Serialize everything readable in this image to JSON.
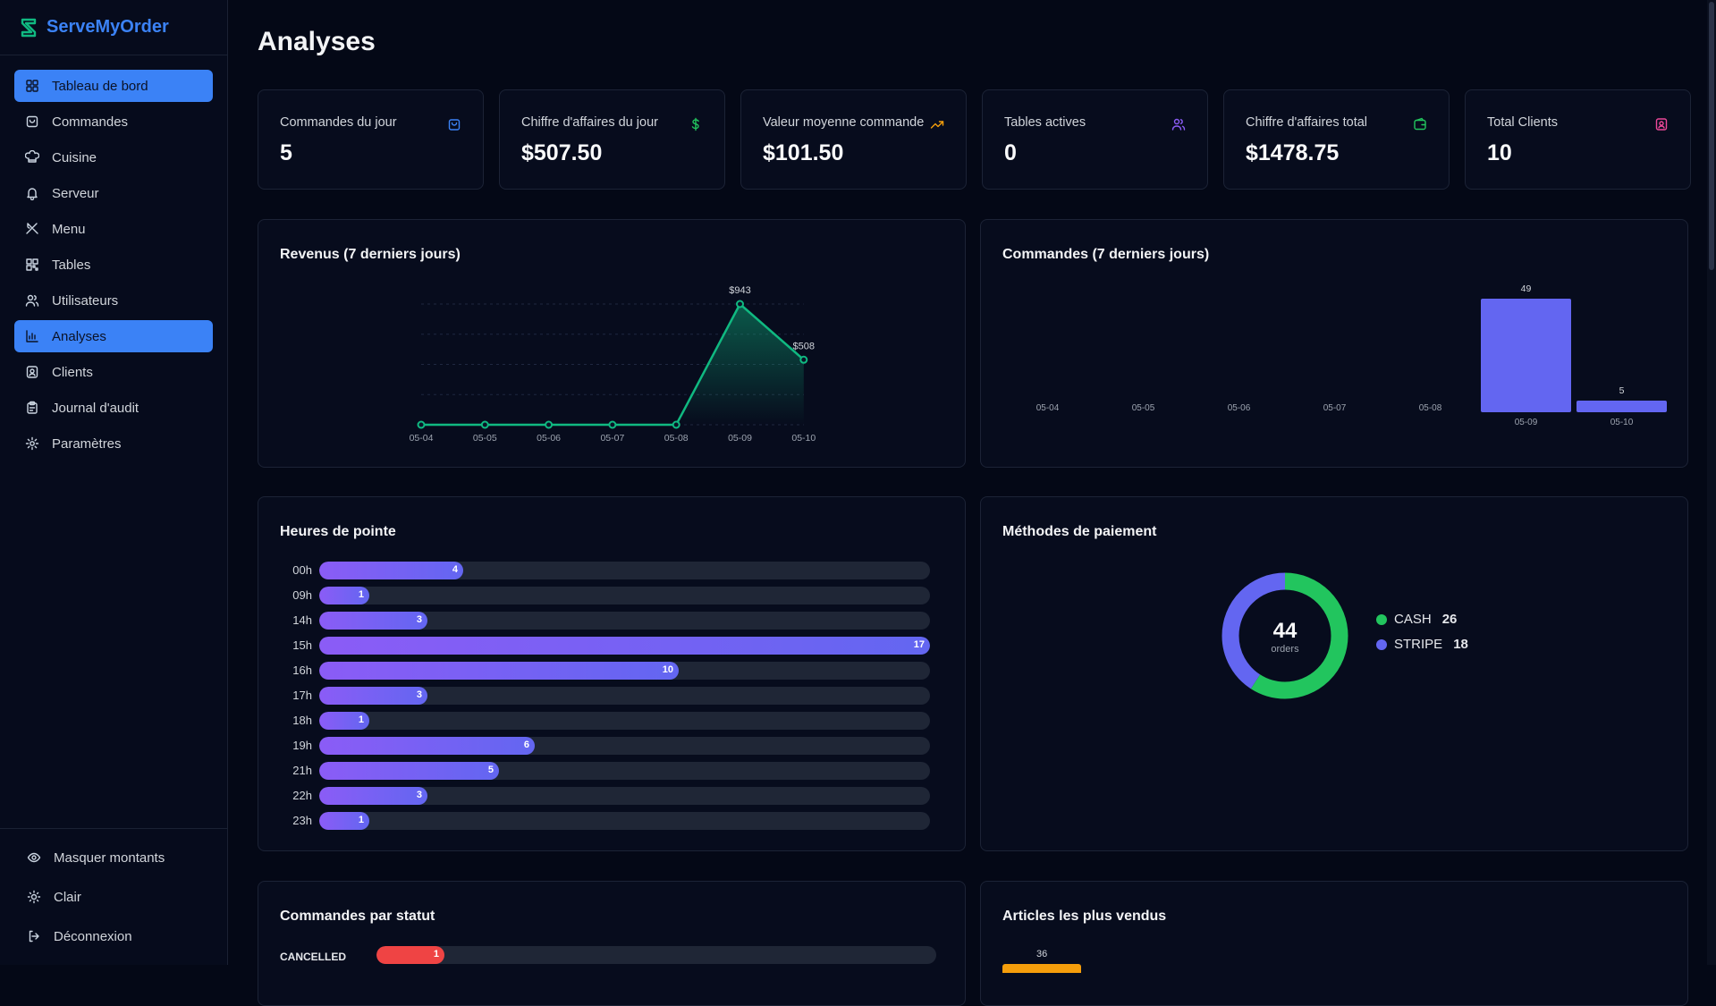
{
  "brand": {
    "name": "ServeMyOrder"
  },
  "sidebar": {
    "items": [
      {
        "label": "Tableau de bord",
        "icon": "dashboard-icon",
        "active": true
      },
      {
        "label": "Commandes",
        "icon": "orders-icon",
        "active": false
      },
      {
        "label": "Cuisine",
        "icon": "chef-hat-icon",
        "active": false
      },
      {
        "label": "Serveur",
        "icon": "bell-icon",
        "active": false
      },
      {
        "label": "Menu",
        "icon": "utensils-icon",
        "active": false
      },
      {
        "label": "Tables",
        "icon": "qr-code-icon",
        "active": false
      },
      {
        "label": "Utilisateurs",
        "icon": "users-icon",
        "active": false
      },
      {
        "label": "Analyses",
        "icon": "bar-chart-icon",
        "active": true
      },
      {
        "label": "Clients",
        "icon": "contact-icon",
        "active": false
      },
      {
        "label": "Journal d'audit",
        "icon": "clipboard-icon",
        "active": false
      },
      {
        "label": "Paramètres",
        "icon": "gear-icon",
        "active": false
      }
    ],
    "bottom": [
      {
        "label": "Masquer montants",
        "icon": "eye-icon"
      },
      {
        "label": "Clair",
        "icon": "sun-icon"
      },
      {
        "label": "Déconnexion",
        "icon": "logout-icon"
      }
    ]
  },
  "page": {
    "title": "Analyses"
  },
  "stats": [
    {
      "label": "Commandes du jour",
      "value": "5",
      "icon": "shopping-bag-icon",
      "color": "#3b82f6"
    },
    {
      "label": "Chiffre d'affaires du jour",
      "value": "$507.50",
      "icon": "dollar-icon",
      "color": "#22c55e"
    },
    {
      "label": "Valeur moyenne commande",
      "value": "$101.50",
      "icon": "trending-up-icon",
      "color": "#f59e0b"
    },
    {
      "label": "Tables actives",
      "value": "0",
      "icon": "users-icon",
      "color": "#8b5cf6"
    },
    {
      "label": "Chiffre d'affaires total",
      "value": "$1478.75",
      "icon": "wallet-icon",
      "color": "#22c55e"
    },
    {
      "label": "Total Clients",
      "value": "10",
      "icon": "contact-icon",
      "color": "#ec4899"
    }
  ],
  "revenue": {
    "title": "Revenus (7 derniers jours)"
  },
  "orders": {
    "title": "Commandes (7 derniers jours)"
  },
  "peak": {
    "title": "Heures de pointe",
    "max": 17
  },
  "payment": {
    "title": "Méthodes de paiement",
    "total": "44",
    "unit": "orders"
  },
  "status": {
    "title": "Commandes par statut",
    "rows": [
      {
        "label": "CANCELLED",
        "value": "1"
      }
    ]
  },
  "top_items": {
    "title": "Articles les plus vendus",
    "first_value": "36"
  },
  "chart_data": [
    {
      "type": "area",
      "title": "Revenus (7 derniers jours)",
      "categories": [
        "05-04",
        "05-05",
        "05-06",
        "05-07",
        "05-08",
        "05-09",
        "05-10"
      ],
      "values": [
        0,
        0,
        0,
        0,
        0,
        943,
        508
      ],
      "data_labels": [
        "",
        "",
        "",
        "",
        "",
        "$943",
        "$508"
      ],
      "color": "#10b981"
    },
    {
      "type": "bar",
      "title": "Commandes (7 derniers jours)",
      "categories": [
        "05-04",
        "05-05",
        "05-06",
        "05-07",
        "05-08",
        "05-09",
        "05-10"
      ],
      "values": [
        0,
        0,
        0,
        0,
        0,
        49,
        5
      ],
      "color": "#6366f1"
    },
    {
      "type": "bar",
      "title": "Heures de pointe",
      "categories": [
        "00h",
        "09h",
        "14h",
        "15h",
        "16h",
        "17h",
        "18h",
        "19h",
        "21h",
        "22h",
        "23h"
      ],
      "values": [
        4,
        1,
        3,
        17,
        10,
        3,
        1,
        6,
        5,
        3,
        1
      ]
    },
    {
      "type": "pie",
      "title": "Méthodes de paiement",
      "categories": [
        "CASH",
        "STRIPE"
      ],
      "values": [
        26,
        18
      ],
      "colors": [
        "#22c55e",
        "#6366f1"
      ]
    }
  ]
}
